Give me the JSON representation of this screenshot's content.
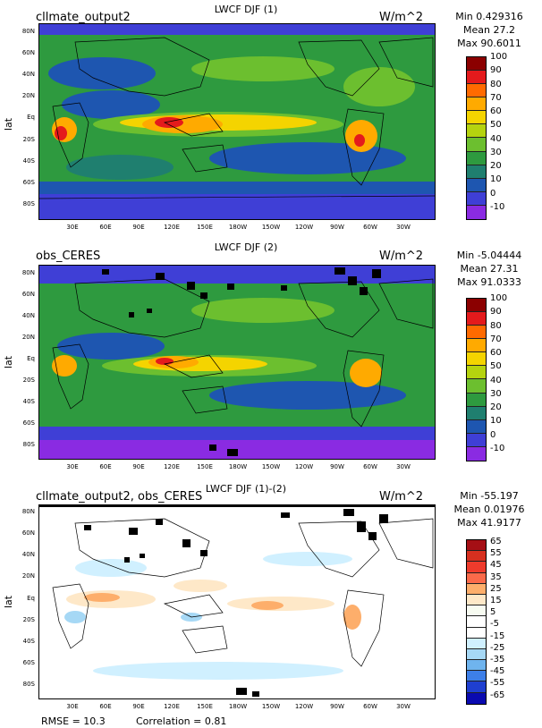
{
  "panels": [
    {
      "plot_title": "LWCF DJF (1)",
      "label": "cllmate_output2",
      "units": "W/m^2",
      "min": "Min 0.429316",
      "mean": "Mean 27.2",
      "max": "Max 90.6011",
      "y_axis_title": "lat",
      "colorbar_labels": [
        "100",
        "90",
        "80",
        "70",
        "60",
        "50",
        "40",
        "30",
        "20",
        "10",
        "0",
        "-10"
      ],
      "colorbar_colors": [
        "#8b0000",
        "#e41a1c",
        "#ff6a00",
        "#ffaa00",
        "#f4d400",
        "#b5d30f",
        "#6cbf2f",
        "#2e9a3f",
        "#1f7f6f",
        "#1e56b0",
        "#3f3fd6",
        "#8a2be2"
      ]
    },
    {
      "plot_title": "LWCF DJF (2)",
      "label": "obs_CERES",
      "units": "W/m^2",
      "min": "Min -5.04444",
      "mean": "Mean 27.31",
      "max": "Max 91.0333",
      "y_axis_title": "lat",
      "colorbar_labels": [
        "100",
        "90",
        "80",
        "70",
        "60",
        "50",
        "40",
        "30",
        "20",
        "10",
        "0",
        "-10"
      ],
      "colorbar_colors": [
        "#8b0000",
        "#e41a1c",
        "#ff6a00",
        "#ffaa00",
        "#f4d400",
        "#b5d30f",
        "#6cbf2f",
        "#2e9a3f",
        "#1f7f6f",
        "#1e56b0",
        "#3f3fd6",
        "#8a2be2"
      ]
    },
    {
      "plot_title": "LWCF DJF (1)-(2)",
      "label": "cllmate_output2, obs_CERES",
      "units": "W/m^2",
      "min": "Min -55.197",
      "mean": "Mean 0.01976",
      "max": "Max 41.9177",
      "y_axis_title": "lat",
      "colorbar_labels": [
        "65",
        "55",
        "45",
        "35",
        "25",
        "15",
        "5",
        "-5",
        "-15",
        "-25",
        "-35",
        "-45",
        "-55",
        "-65"
      ],
      "colorbar_colors": [
        "#a50f15",
        "#d7301f",
        "#ef3b2c",
        "#fb6a4a",
        "#fdae6b",
        "#fee8c8",
        "#f7fbf1",
        "#ffffff",
        "#ffffff",
        "#d0f0ff",
        "#a6d8f5",
        "#6fb4ee",
        "#3d7fe8",
        "#1f3fd0",
        "#0a0ab0"
      ]
    }
  ],
  "lat_ticks": [
    "80N",
    "60N",
    "40N",
    "20N",
    "Eq",
    "20S",
    "40S",
    "60S",
    "80S"
  ],
  "lon_ticks": [
    "30E",
    "60E",
    "90E",
    "120E",
    "150E",
    "180W",
    "150W",
    "120W",
    "90W",
    "60W",
    "30W"
  ],
  "footer": {
    "rmse": "RMSE = 10.3",
    "correlation": "Correlation = 0.81"
  }
}
